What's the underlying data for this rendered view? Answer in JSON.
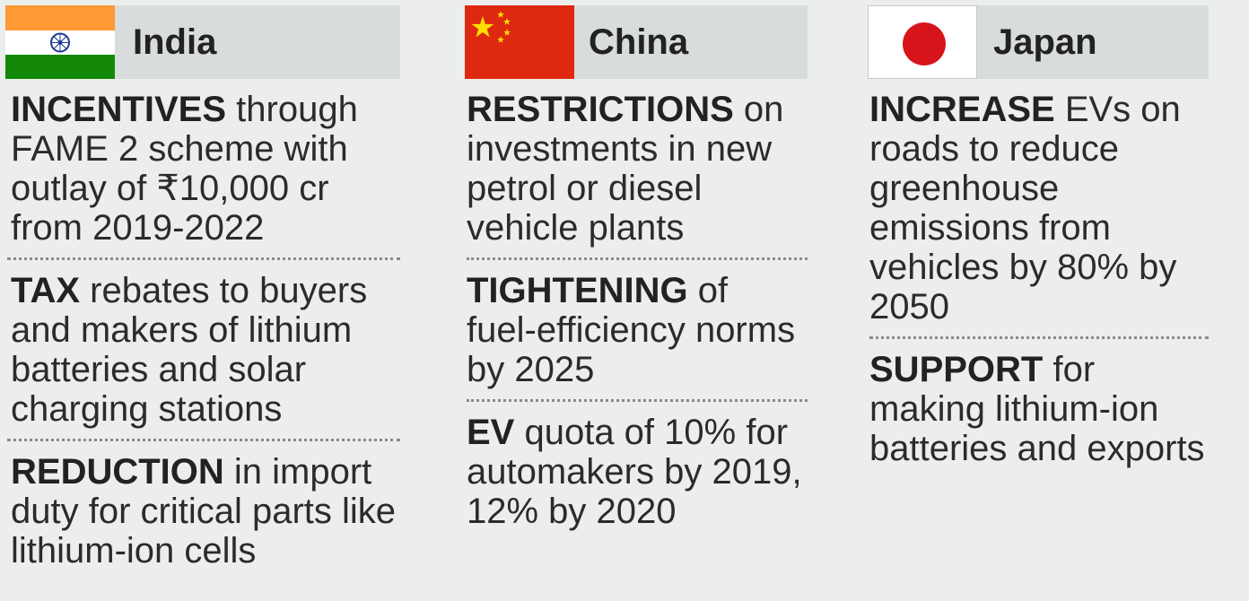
{
  "columns": [
    {
      "country": "India",
      "flag_colors": {
        "top": "#ff9933",
        "middle": "#ffffff",
        "bottom": "#138808",
        "chakra": "#1f3a93"
      },
      "items": [
        {
          "lead": "INCENTIVES",
          "text": " through FAME 2 scheme with outlay of ₹10,000 cr from 2019-2022"
        },
        {
          "lead": "TAX",
          "text": " rebates to buyers and makers of lithium batteries and solar charging stations"
        },
        {
          "lead": "REDUCTION",
          "text": " in import duty for critical parts like lithium-ion cells"
        }
      ]
    },
    {
      "country": "China",
      "flag_colors": {
        "field": "#de2910",
        "stars": "#ffde00"
      },
      "items": [
        {
          "lead": "RESTRICTIONS",
          "text": " on investments in new petrol or diesel vehicle plants"
        },
        {
          "lead": "TIGHTENING",
          "text": " of fuel-efficiency norms by 2025"
        },
        {
          "lead": "EV",
          "text": " quota of 10% for automakers by 2019, 12% by 2020"
        }
      ]
    },
    {
      "country": "Japan",
      "flag_colors": {
        "field": "#ffffff",
        "disc": "#d7141a"
      },
      "items": [
        {
          "lead": "INCREASE",
          "text": " EVs on roads to reduce greenhouse emissions from vehicles by 80% by 2050"
        },
        {
          "lead": "SUPPORT",
          "text": " for making lithium-ion batteries and exports"
        }
      ]
    }
  ]
}
